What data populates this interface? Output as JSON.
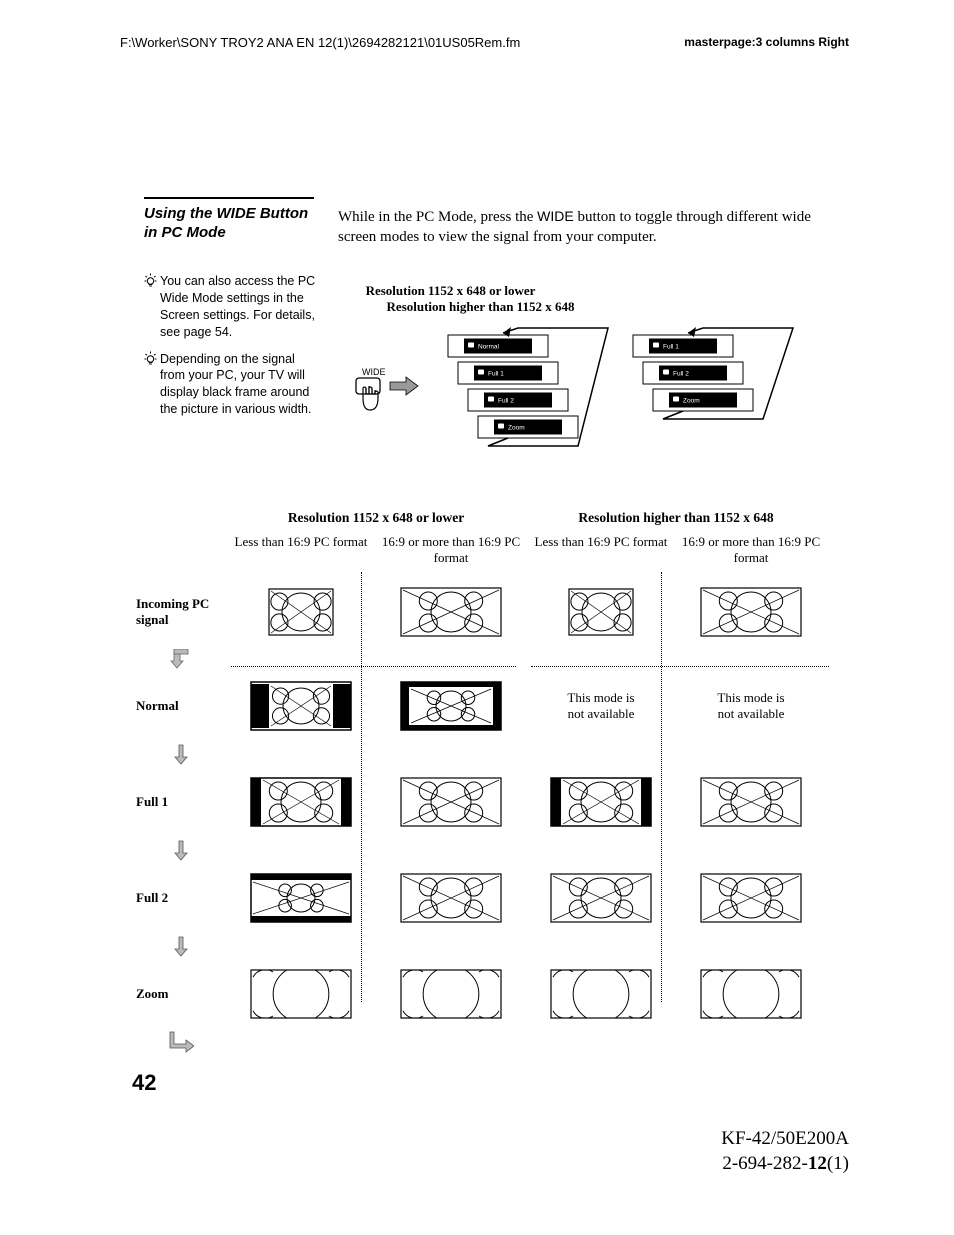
{
  "header": {
    "path": "F:\\Worker\\SONY TROY2 ANA EN 12(1)\\2694282121\\01US05Rem.fm",
    "masterpage": "masterpage:3 columns Right"
  },
  "section_title": "Using the WIDE Button in PC Mode",
  "body_pre": "While in the PC Mode, press the ",
  "body_mid": "WIDE",
  "body_post": " button to toggle through different wide screen modes to view the signal from your computer.",
  "tips": [
    "You can also access the PC Wide Mode settings in the Screen settings. For details, see page 54.",
    "Depending on the signal from your PC, your TV will display black frame around the picture in various width."
  ],
  "diagram": {
    "low": "Resolution 1152 x 648 or lower",
    "high": "Resolution higher than 1152 x 648",
    "wide_label": "WIDE",
    "modes_low": [
      "Normal",
      "Full 1",
      "Full 2",
      "Zoom"
    ],
    "modes_high": [
      "Full 1",
      "Full 2",
      "Zoom"
    ]
  },
  "table": {
    "res_low": "Resolution 1152 x 648 or lower",
    "res_high": "Resolution higher than 1152 x 648",
    "col_a": "Less than 16:9 PC format",
    "col_b": "16:9 or more than 16:9 PC format",
    "rows": [
      "Incoming PC signal",
      "Normal",
      "Full 1",
      "Full 2",
      "Zoom"
    ],
    "na": "This mode is not available"
  },
  "page": "42",
  "footer": {
    "model": "KF-42/50E200A",
    "doc_a": "2-694-282-",
    "doc_b": "12",
    "doc_c": "(1)"
  },
  "style": {
    "stroke": "#000000",
    "bg": "#ffffff"
  }
}
